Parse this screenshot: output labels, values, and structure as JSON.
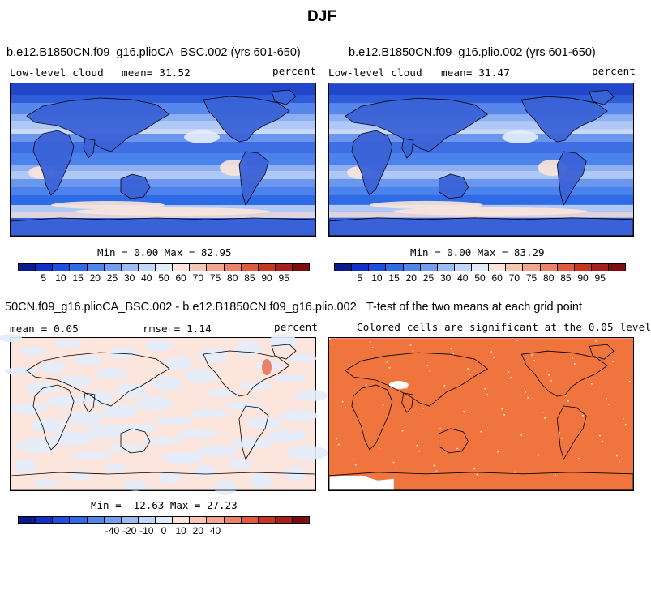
{
  "title": "DJF",
  "panels": [
    {
      "title": "b.e12.B1850CN.f09_g16.plioCA_BSC.002 (yrs 601-650)",
      "left_label": "Low-level cloud",
      "mean_label": "mean= 31.52",
      "right_label": "percent",
      "minmax": "Min = 0.00 Max = 82.95"
    },
    {
      "title": "b.e12.B1850CN.f09_g16.plio.002 (yrs 601-650)",
      "left_label": "Low-level cloud",
      "mean_label": "mean= 31.47",
      "right_label": "percent",
      "minmax": "Min = 0.00 Max = 83.29"
    },
    {
      "title": "50CN.f09_g16.plioCA_BSC.002 - b.e12.B1850CN.f09_g16.plio.002",
      "left_label": "mean = 0.05",
      "mean_label": "rmse = 1.14",
      "right_label": "percent",
      "minmax": "Min = -12.63 Max = 27.23"
    },
    {
      "title": "T-test of the two means at each grid point",
      "subtitle": "Colored cells are significant at the 0.05 level"
    }
  ],
  "colorbar_abs": {
    "ticks": [
      "5",
      "10",
      "15",
      "20",
      "25",
      "30",
      "40",
      "50",
      "60",
      "70",
      "75",
      "80",
      "85",
      "90",
      "95"
    ],
    "colors": [
      "#0c1a8c",
      "#1130c8",
      "#1f4fe0",
      "#2d6be8",
      "#4f86ec",
      "#729ef0",
      "#9cbcf4",
      "#c3d8f8",
      "#e3ecfb",
      "#fbe5dc",
      "#f8c7b4",
      "#f3a68d",
      "#ec8265",
      "#e25a3d",
      "#c9361f",
      "#a9201a",
      "#7e0f0f"
    ]
  },
  "colorbar_diff": {
    "ticks": [
      "-40",
      "-20",
      "-10",
      "0",
      "10",
      "20",
      "40"
    ],
    "colors": [
      "#0c1a8c",
      "#1130c8",
      "#1f4fe0",
      "#2d6be8",
      "#4f86ec",
      "#729ef0",
      "#9cbcf4",
      "#c3d8f8",
      "#e3ecfb",
      "#fbe5dc",
      "#f8c7b4",
      "#f3a68d",
      "#ec8265",
      "#e25a3d",
      "#c9361f",
      "#a9201a",
      "#7e0f0f"
    ]
  }
}
